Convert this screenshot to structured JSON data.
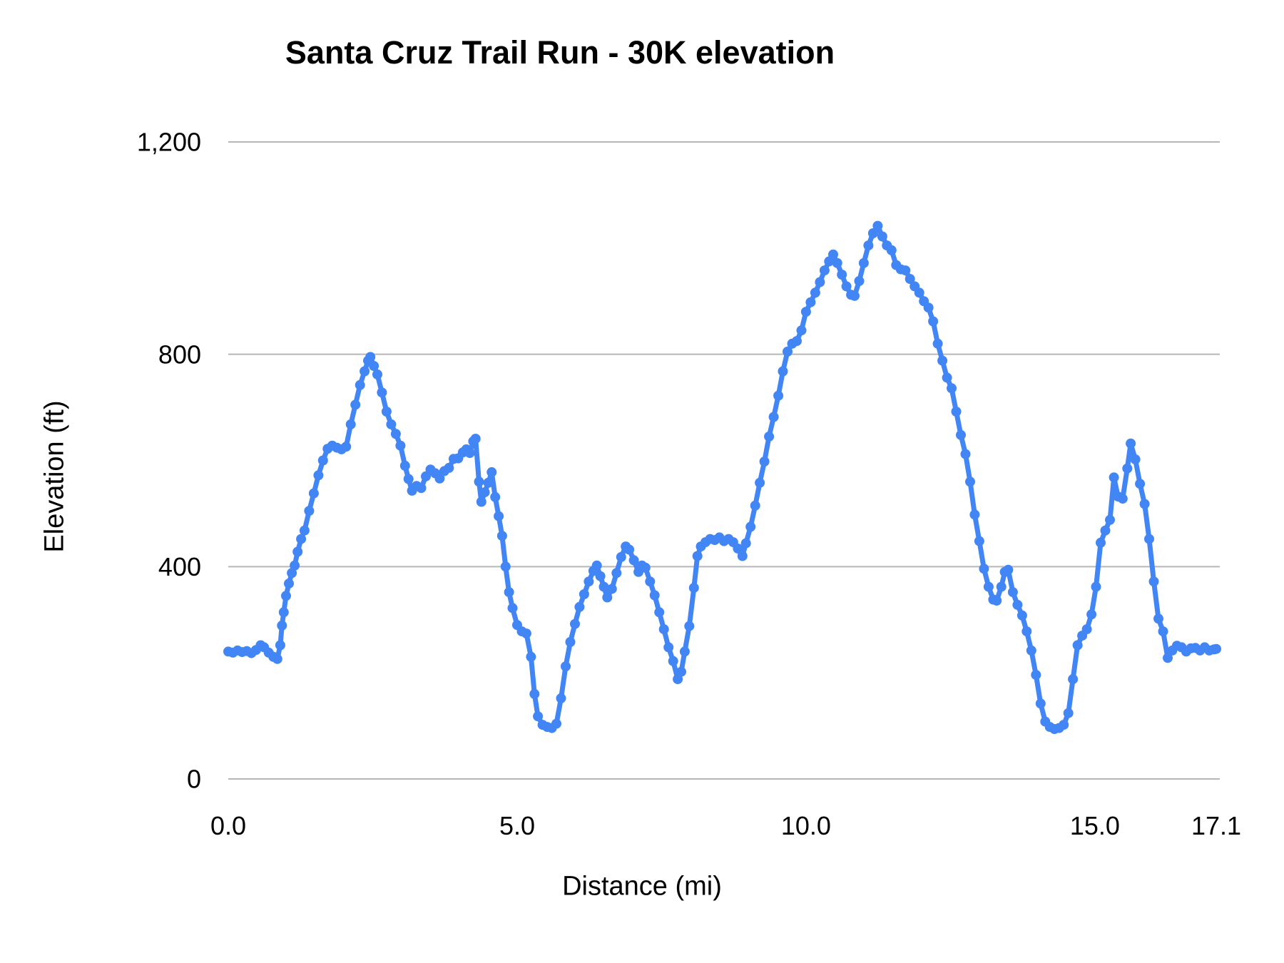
{
  "chart_data": {
    "type": "line",
    "title": "Santa Cruz Trail Run - 30K elevation",
    "xlabel": "Distance (mi)",
    "ylabel": "Elevation (ft)",
    "xlim": [
      0,
      17.1
    ],
    "ylim": [
      0,
      1200
    ],
    "grid": "horizontal",
    "legend": "none",
    "x_ticks": [
      {
        "value": 0,
        "label": "0.0"
      },
      {
        "value": 5,
        "label": "5.0"
      },
      {
        "value": 10,
        "label": "10.0"
      },
      {
        "value": 15,
        "label": "15.0"
      },
      {
        "value": 17.1,
        "label": "17.1"
      }
    ],
    "y_ticks": [
      {
        "value": 0,
        "label": "0"
      },
      {
        "value": 400,
        "label": "400"
      },
      {
        "value": 800,
        "label": "800"
      },
      {
        "value": 1200,
        "label": "1,200"
      }
    ],
    "colors": {
      "series": "#4285f4",
      "gridline": "#b7b7b7",
      "text": "#000000",
      "background": "#ffffff"
    },
    "series": [
      {
        "name": "Elevation",
        "color": "#4285f4",
        "points": [
          [
            0.0,
            240
          ],
          [
            0.08,
            238
          ],
          [
            0.16,
            242
          ],
          [
            0.24,
            239
          ],
          [
            0.32,
            241
          ],
          [
            0.4,
            237
          ],
          [
            0.48,
            243
          ],
          [
            0.56,
            252
          ],
          [
            0.62,
            248
          ],
          [
            0.7,
            238
          ],
          [
            0.78,
            230
          ],
          [
            0.85,
            226
          ],
          [
            0.9,
            252
          ],
          [
            0.93,
            289
          ],
          [
            0.96,
            314
          ],
          [
            1.0,
            345
          ],
          [
            1.05,
            368
          ],
          [
            1.1,
            388
          ],
          [
            1.15,
            402
          ],
          [
            1.2,
            428
          ],
          [
            1.26,
            452
          ],
          [
            1.32,
            468
          ],
          [
            1.4,
            505
          ],
          [
            1.48,
            538
          ],
          [
            1.56,
            572
          ],
          [
            1.64,
            600
          ],
          [
            1.72,
            622
          ],
          [
            1.8,
            628
          ],
          [
            1.88,
            624
          ],
          [
            1.96,
            621
          ],
          [
            2.04,
            626
          ],
          [
            2.12,
            668
          ],
          [
            2.2,
            705
          ],
          [
            2.28,
            742
          ],
          [
            2.36,
            768
          ],
          [
            2.42,
            788
          ],
          [
            2.46,
            795
          ],
          [
            2.52,
            778
          ],
          [
            2.58,
            762
          ],
          [
            2.66,
            728
          ],
          [
            2.74,
            692
          ],
          [
            2.82,
            668
          ],
          [
            2.9,
            650
          ],
          [
            2.98,
            628
          ],
          [
            3.06,
            590
          ],
          [
            3.12,
            565
          ],
          [
            3.18,
            543
          ],
          [
            3.26,
            552
          ],
          [
            3.34,
            548
          ],
          [
            3.42,
            570
          ],
          [
            3.5,
            583
          ],
          [
            3.58,
            576
          ],
          [
            3.66,
            566
          ],
          [
            3.74,
            580
          ],
          [
            3.82,
            586
          ],
          [
            3.9,
            603
          ],
          [
            3.98,
            604
          ],
          [
            4.06,
            615
          ],
          [
            4.12,
            621
          ],
          [
            4.18,
            614
          ],
          [
            4.24,
            636
          ],
          [
            4.28,
            641
          ],
          [
            4.34,
            560
          ],
          [
            4.38,
            522
          ],
          [
            4.44,
            540
          ],
          [
            4.5,
            558
          ],
          [
            4.56,
            578
          ],
          [
            4.62,
            531
          ],
          [
            4.68,
            495
          ],
          [
            4.74,
            458
          ],
          [
            4.8,
            400
          ],
          [
            4.86,
            352
          ],
          [
            4.92,
            322
          ],
          [
            5.0,
            290
          ],
          [
            5.08,
            278
          ],
          [
            5.16,
            274
          ],
          [
            5.24,
            230
          ],
          [
            5.3,
            160
          ],
          [
            5.36,
            118
          ],
          [
            5.44,
            102
          ],
          [
            5.52,
            98
          ],
          [
            5.6,
            96
          ],
          [
            5.68,
            104
          ],
          [
            5.76,
            152
          ],
          [
            5.84,
            212
          ],
          [
            5.92,
            258
          ],
          [
            6.0,
            292
          ],
          [
            6.08,
            324
          ],
          [
            6.16,
            348
          ],
          [
            6.24,
            372
          ],
          [
            6.32,
            392
          ],
          [
            6.38,
            402
          ],
          [
            6.44,
            382
          ],
          [
            6.5,
            362
          ],
          [
            6.56,
            342
          ],
          [
            6.64,
            358
          ],
          [
            6.72,
            388
          ],
          [
            6.8,
            418
          ],
          [
            6.88,
            438
          ],
          [
            6.94,
            432
          ],
          [
            7.02,
            412
          ],
          [
            7.1,
            390
          ],
          [
            7.16,
            402
          ],
          [
            7.22,
            398
          ],
          [
            7.3,
            372
          ],
          [
            7.38,
            346
          ],
          [
            7.46,
            314
          ],
          [
            7.54,
            282
          ],
          [
            7.62,
            248
          ],
          [
            7.7,
            222
          ],
          [
            7.78,
            188
          ],
          [
            7.84,
            202
          ],
          [
            7.9,
            240
          ],
          [
            7.98,
            288
          ],
          [
            8.06,
            360
          ],
          [
            8.12,
            420
          ],
          [
            8.18,
            438
          ],
          [
            8.26,
            446
          ],
          [
            8.34,
            452
          ],
          [
            8.42,
            450
          ],
          [
            8.5,
            455
          ],
          [
            8.58,
            448
          ],
          [
            8.66,
            452
          ],
          [
            8.74,
            446
          ],
          [
            8.82,
            434
          ],
          [
            8.9,
            420
          ],
          [
            8.96,
            444
          ],
          [
            9.04,
            475
          ],
          [
            9.12,
            515
          ],
          [
            9.2,
            558
          ],
          [
            9.28,
            598
          ],
          [
            9.36,
            645
          ],
          [
            9.44,
            682
          ],
          [
            9.52,
            722
          ],
          [
            9.6,
            768
          ],
          [
            9.68,
            805
          ],
          [
            9.76,
            820
          ],
          [
            9.84,
            825
          ],
          [
            9.92,
            845
          ],
          [
            10.0,
            880
          ],
          [
            10.08,
            898
          ],
          [
            10.16,
            916
          ],
          [
            10.24,
            936
          ],
          [
            10.32,
            958
          ],
          [
            10.4,
            975
          ],
          [
            10.47,
            988
          ],
          [
            10.54,
            972
          ],
          [
            10.62,
            950
          ],
          [
            10.7,
            928
          ],
          [
            10.78,
            912
          ],
          [
            10.84,
            910
          ],
          [
            10.92,
            938
          ],
          [
            11.0,
            972
          ],
          [
            11.08,
            1005
          ],
          [
            11.16,
            1028
          ],
          [
            11.24,
            1042
          ],
          [
            11.32,
            1022
          ],
          [
            11.4,
            1005
          ],
          [
            11.48,
            996
          ],
          [
            11.56,
            968
          ],
          [
            11.64,
            960
          ],
          [
            11.72,
            958
          ],
          [
            11.8,
            942
          ],
          [
            11.88,
            928
          ],
          [
            11.96,
            916
          ],
          [
            12.04,
            900
          ],
          [
            12.12,
            888
          ],
          [
            12.2,
            862
          ],
          [
            12.28,
            820
          ],
          [
            12.36,
            788
          ],
          [
            12.44,
            756
          ],
          [
            12.52,
            736
          ],
          [
            12.6,
            692
          ],
          [
            12.68,
            648
          ],
          [
            12.76,
            612
          ],
          [
            12.84,
            560
          ],
          [
            12.92,
            498
          ],
          [
            13.0,
            448
          ],
          [
            13.08,
            396
          ],
          [
            13.16,
            362
          ],
          [
            13.24,
            338
          ],
          [
            13.3,
            336
          ],
          [
            13.38,
            362
          ],
          [
            13.44,
            390
          ],
          [
            13.5,
            394
          ],
          [
            13.58,
            352
          ],
          [
            13.66,
            328
          ],
          [
            13.74,
            308
          ],
          [
            13.82,
            278
          ],
          [
            13.9,
            242
          ],
          [
            13.98,
            196
          ],
          [
            14.06,
            142
          ],
          [
            14.14,
            108
          ],
          [
            14.22,
            98
          ],
          [
            14.3,
            94
          ],
          [
            14.38,
            96
          ],
          [
            14.46,
            102
          ],
          [
            14.54,
            124
          ],
          [
            14.62,
            188
          ],
          [
            14.7,
            252
          ],
          [
            14.78,
            270
          ],
          [
            14.86,
            282
          ],
          [
            14.94,
            310
          ],
          [
            15.02,
            362
          ],
          [
            15.1,
            445
          ],
          [
            15.18,
            468
          ],
          [
            15.26,
            488
          ],
          [
            15.33,
            568
          ],
          [
            15.4,
            532
          ],
          [
            15.48,
            528
          ],
          [
            15.56,
            585
          ],
          [
            15.62,
            632
          ],
          [
            15.7,
            602
          ],
          [
            15.78,
            556
          ],
          [
            15.86,
            518
          ],
          [
            15.94,
            452
          ],
          [
            16.02,
            372
          ],
          [
            16.1,
            302
          ],
          [
            16.18,
            278
          ],
          [
            16.26,
            228
          ],
          [
            16.34,
            242
          ],
          [
            16.42,
            251
          ],
          [
            16.5,
            248
          ],
          [
            16.58,
            240
          ],
          [
            16.66,
            246
          ],
          [
            16.74,
            247
          ],
          [
            16.82,
            242
          ],
          [
            16.9,
            248
          ],
          [
            16.98,
            242
          ],
          [
            17.06,
            244
          ],
          [
            17.1,
            245
          ]
        ]
      }
    ]
  }
}
